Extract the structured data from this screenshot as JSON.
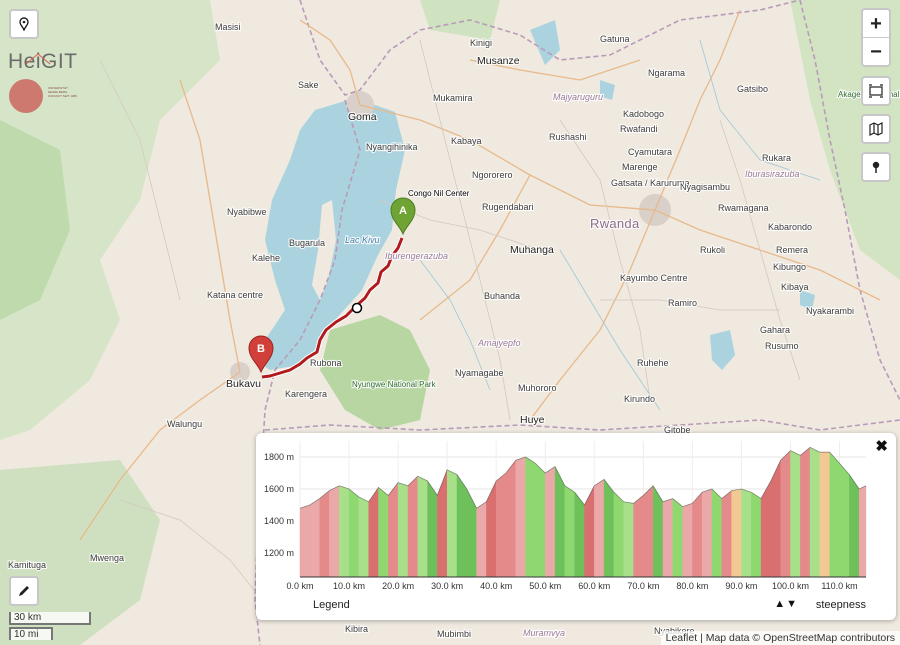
{
  "map": {
    "labels": {
      "masisi": "Masisi",
      "sake": "Sake",
      "goma": "Goma",
      "kinigi": "Kinigi",
      "musanze": "Musanze",
      "gatuna": "Gatuna",
      "ngarama": "Ngarama",
      "gatsibo": "Gatsibo",
      "akagera": "Akagera National Park",
      "mukamira": "Mukamira",
      "majyaruguru": "Majyaruguru",
      "kadobogo": "Kadobogo",
      "rwafandi": "Rwafandi",
      "kabaya": "Kabaya",
      "rushashi": "Rushashi",
      "nyangihinika": "Nyangihinika",
      "cyamutara": "Cyamutara",
      "marenge": "Marenge",
      "rukara": "Rukara",
      "iburasirazuba": "Iburasirazuba",
      "gatsata": "Gatsata / Karuruma",
      "nyagisambu": "Nyagisambu",
      "ngororero": "Ngororero",
      "rugendabari": "Rugendabari",
      "gisenyi": "Congo Nil Center",
      "rwanda": "Rwanda",
      "rwamagana": "Rwamagana",
      "nyabibwe": "Nyabibwe",
      "lacKivu": "Lac Kivu",
      "kabarondo": "Kabarondo",
      "bugarula": "Bugarula",
      "iburengerazuba": "Iburengerazuba",
      "muhanga": "Muhanga",
      "rukoli": "Rukoli",
      "remera": "Remera",
      "kalehe": "Kalehe",
      "kayumbo": "Kayumbo Centre",
      "kibungo": "Kibungo",
      "ramiro": "Ramiro",
      "kibaya": "Kibaya",
      "katana": "Katana centre",
      "buhanda": "Buhanda",
      "nyakarambi": "Nyakarambi",
      "amajyepfo": "Amajyepfo",
      "gahara": "Gahara",
      "rusumo": "Rusumo",
      "rubona": "Rubona",
      "ruhehe": "Ruhehe",
      "nyamagabe": "Nyamagabe",
      "bukavu": "Bukavu",
      "karengera": "Karengera",
      "nyungwe": "Nyungwe National Park",
      "muhororo": "Muhororo",
      "kirundo": "Kirundo",
      "huye": "Huye",
      "walungu": "Walungu",
      "gitobe": "Gitobe",
      "kamituga": "Kamituga",
      "mwenga": "Mwenga",
      "kibira": "Kibira",
      "mubimbi": "Mubimbi",
      "muramvya": "Muramvya",
      "nyabikere": "Nyabikere"
    },
    "markers": {
      "start": "A",
      "end": "B"
    }
  },
  "logo": {
    "text": "HeiGIT",
    "subtext": "UNIVERSITÄT HEIDELBERG ZUKUNFT SEIT 1386"
  },
  "controls": {
    "zoom_in": "+",
    "zoom_out": "−"
  },
  "elevation": {
    "close": "✖",
    "legend_label": "Legend",
    "steepness_arrows": "▲▼",
    "steepness_label": "steepness",
    "y_ticks": [
      "1200 m",
      "1400 m",
      "1600 m",
      "1800 m"
    ],
    "x_ticks": [
      "0.0 km",
      "10.0 km",
      "20.0 km",
      "30.0 km",
      "40.0 km",
      "50.0 km",
      "60.0 km",
      "70.0 km",
      "80.0 km",
      "90.0 km",
      "100.0 km",
      "110.0 km"
    ]
  },
  "chart_data": {
    "type": "area",
    "xlim": [
      0,
      115.4
    ],
    "ylim": [
      1050,
      1900
    ],
    "x": [
      0,
      2,
      4,
      6,
      8,
      10,
      12,
      14,
      16,
      18,
      20,
      22,
      24,
      26,
      28,
      30,
      32,
      34,
      36,
      38,
      40,
      42,
      44,
      46,
      48,
      50,
      52,
      54,
      56,
      58,
      60,
      62,
      64,
      66,
      68,
      70,
      72,
      74,
      76,
      78,
      80,
      82,
      84,
      86,
      88,
      90,
      92,
      94,
      96,
      98,
      100,
      102,
      104,
      106,
      108,
      110,
      112,
      114,
      115.4
    ],
    "y": [
      1480,
      1500,
      1540,
      1590,
      1620,
      1600,
      1550,
      1520,
      1610,
      1560,
      1640,
      1620,
      1680,
      1650,
      1560,
      1720,
      1690,
      1600,
      1480,
      1520,
      1650,
      1700,
      1780,
      1800,
      1760,
      1700,
      1740,
      1620,
      1580,
      1500,
      1620,
      1660,
      1580,
      1520,
      1510,
      1560,
      1620,
      1520,
      1540,
      1490,
      1510,
      1580,
      1600,
      1540,
      1590,
      1600,
      1580,
      1540,
      1650,
      1780,
      1840,
      1810,
      1860,
      1830,
      1830,
      1760,
      1690,
      1600,
      1620
    ],
    "steepness_colors": [
      "#d96f6f",
      "#e58a8a",
      "#eaa8a8",
      "#f2c893",
      "#a8e08a",
      "#8fd870",
      "#6ec05a"
    ]
  }
}
